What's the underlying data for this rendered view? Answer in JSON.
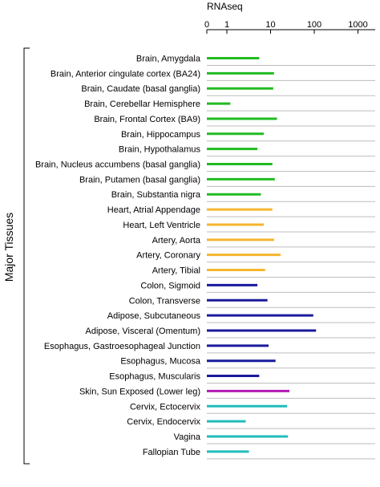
{
  "chart_data": {
    "type": "bar",
    "orientation": "horizontal",
    "xlabel": "RNAseq",
    "xscale": "log",
    "xticks": [
      0,
      1,
      10,
      100,
      1000
    ],
    "xlim": [
      0,
      1000
    ],
    "ylabel": "Major Tissues",
    "grid": "horizontal separators",
    "categories": [
      "Brain, Amygdala",
      "Brain, Anterior cingulate cortex (BA24)",
      "Brain, Caudate (basal ganglia)",
      "Brain, Cerebellar Hemisphere",
      "Brain, Frontal Cortex (BA9)",
      "Brain, Hippocampus",
      "Brain, Hypothalamus",
      "Brain, Nucleus accumbens (basal ganglia)",
      "Brain, Putamen (basal ganglia)",
      "Brain, Substantia nigra",
      "Heart, Atrial Appendage",
      "Heart, Left Ventricle",
      "Artery, Aorta",
      "Artery, Coronary",
      "Artery, Tibial",
      "Colon, Sigmoid",
      "Colon, Transverse",
      "Adipose, Subcutaneous",
      "Adipose, Visceral (Omentum)",
      "Esophagus, Gastroesophageal Junction",
      "Esophagus, Mucosa",
      "Esophagus, Muscularis",
      "Skin, Sun Exposed (Lower leg)",
      "Cervix, Ectocervix",
      "Cervix, Endocervix",
      "Vagina",
      "Fallopian Tube"
    ],
    "values": [
      5.5,
      12,
      11.5,
      1.2,
      14,
      7,
      5,
      11,
      12.5,
      6,
      11,
      7,
      12,
      17,
      7.5,
      5,
      8.5,
      95,
      110,
      9,
      13,
      5.5,
      27,
      24,
      2.7,
      25,
      3.2
    ],
    "groups": [
      "brain",
      "brain",
      "brain",
      "brain",
      "brain",
      "brain",
      "brain",
      "brain",
      "brain",
      "brain",
      "heart",
      "heart",
      "heart",
      "heart",
      "heart",
      "gut",
      "gut",
      "gut",
      "gut",
      "gut",
      "gut",
      "gut",
      "skin",
      "repro",
      "repro",
      "repro",
      "repro"
    ],
    "colors": {
      "brain": "#22bb22",
      "heart": "#f5b52e",
      "gut": "#1a1a9e",
      "skin": "#b219b2",
      "repro": "#22bcbc"
    }
  }
}
